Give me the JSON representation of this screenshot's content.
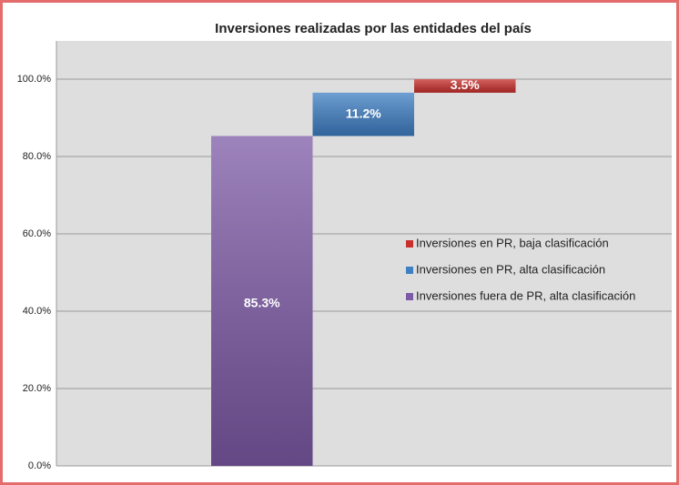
{
  "chart_data": {
    "type": "waterfall",
    "title": "Inversiones realizadas por las entidades del país",
    "series": [
      {
        "name": "Inversiones fuera de PR, alta clasificación",
        "color": "#7d5aa6",
        "values": [
          85.3
        ],
        "value_labels": [
          "85.3%"
        ]
      },
      {
        "name": "Inversiones en PR, alta clasificación",
        "color": "#3f7fc4",
        "values": [
          11.2
        ],
        "value_labels": [
          "11.2%"
        ]
      },
      {
        "name": "Inversiones en PR, baja clasificación",
        "color": "#c8302d",
        "values": [
          3.5
        ],
        "value_labels": [
          "3.5%"
        ]
      }
    ],
    "ylim": [
      0,
      100
    ],
    "yticks": [
      {
        "value": 0,
        "label": "0.0%"
      },
      {
        "value": 20,
        "label": "20.0%"
      },
      {
        "value": 40,
        "label": "40.0%"
      },
      {
        "value": 60,
        "label": "60.0%"
      },
      {
        "value": 80,
        "label": "80.0%"
      },
      {
        "value": 100,
        "label": "100.0%"
      }
    ],
    "grid": true,
    "legend": "right"
  }
}
